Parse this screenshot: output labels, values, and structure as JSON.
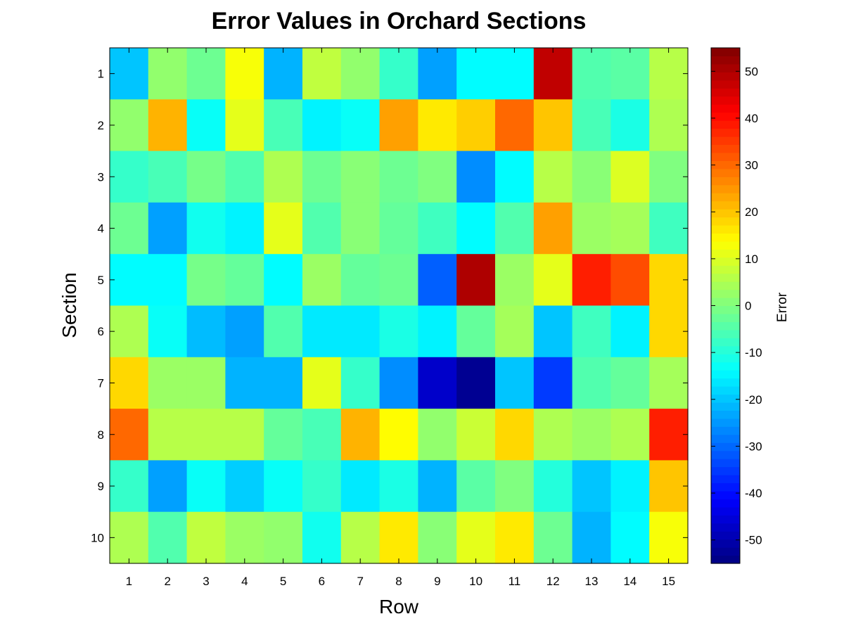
{
  "chart_data": {
    "type": "heatmap",
    "title": "Error Values in Orchard Sections",
    "xlabel": "Row",
    "ylabel": "Section",
    "colorbar_label": "Error",
    "colormap": "jet",
    "x_categories": [
      "1",
      "2",
      "3",
      "4",
      "5",
      "6",
      "7",
      "8",
      "9",
      "10",
      "11",
      "12",
      "13",
      "14",
      "15"
    ],
    "y_categories": [
      "1",
      "2",
      "3",
      "4",
      "5",
      "6",
      "7",
      "8",
      "9",
      "10"
    ],
    "clim": [
      -55,
      55
    ],
    "colorbar_ticks": [
      "50",
      "40",
      "30",
      "20",
      "10",
      "0",
      "-10",
      "-20",
      "-30",
      "-40",
      "-50"
    ],
    "colorbar_tick_values": [
      50,
      40,
      30,
      20,
      10,
      0,
      -10,
      -20,
      -30,
      -40,
      -50
    ],
    "values": [
      [
        -20,
        2,
        -2,
        13,
        -22,
        7,
        2,
        -8,
        -24,
        -14,
        -14,
        48,
        -5,
        -4,
        6
      ],
      [
        2,
        22,
        -13,
        11,
        -6,
        -15,
        -13,
        24,
        16,
        19,
        30,
        20,
        -6,
        -11,
        5
      ],
      [
        -8,
        -6,
        -1,
        -5,
        5,
        -2,
        1,
        -2,
        0,
        -26,
        -14,
        6,
        1,
        10,
        0
      ],
      [
        -2,
        -24,
        -12,
        -15,
        11,
        -5,
        1,
        -3,
        -7,
        -14,
        -5,
        24,
        3,
        4,
        -7
      ],
      [
        -14,
        -14,
        -1,
        -3,
        -14,
        3,
        -3,
        -2,
        -31,
        50,
        3,
        11,
        38,
        33,
        18
      ],
      [
        5,
        -13,
        -21,
        -24,
        -5,
        -16,
        -16,
        -11,
        -15,
        -3,
        4,
        -20,
        -7,
        -15,
        18
      ],
      [
        18,
        3,
        3,
        -22,
        -22,
        11,
        -8,
        -26,
        -47,
        -53,
        -20,
        -35,
        -5,
        -3,
        4
      ],
      [
        30,
        6,
        6,
        6,
        -3,
        -6,
        22,
        14,
        2,
        8,
        18,
        5,
        3,
        5,
        38
      ],
      [
        -8,
        -24,
        -13,
        -19,
        -13,
        -8,
        -16,
        -11,
        -22,
        -4,
        0,
        -10,
        -20,
        -15,
        20
      ],
      [
        5,
        -5,
        7,
        3,
        2,
        -12,
        6,
        16,
        1,
        11,
        16,
        -2,
        -22,
        -14,
        13
      ]
    ]
  }
}
